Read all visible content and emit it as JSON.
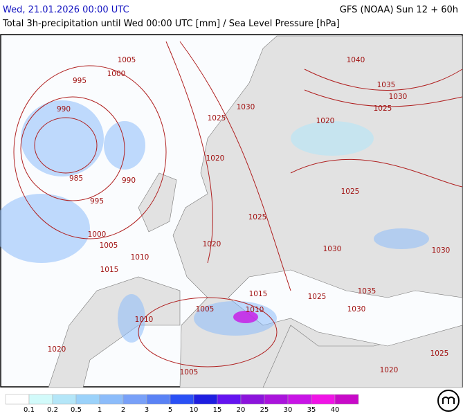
{
  "header": {
    "datetime": "Wed, 21.01.2026 00:00 UTC",
    "model": "GFS (NOAA) Sun 12 + 60h",
    "subtitle": "Total 3h-precipitation until Wed 00:00 UTC [mm] / Sea Level Pressure [hPa]"
  },
  "isobar_labels": [
    "1005",
    "1000",
    "995",
    "990",
    "985",
    "990",
    "995",
    "1000",
    "1005",
    "1010",
    "1015",
    "1010",
    "1005",
    "1005",
    "1020",
    "1030",
    "1025",
    "1020",
    "1025",
    "1020",
    "1015",
    "1010",
    "1025",
    "1030",
    "1035",
    "1030",
    "1025",
    "1020",
    "1025",
    "1030",
    "1035",
    "1040",
    "1030",
    "1025",
    "1020"
  ],
  "legend": {
    "labels": [
      "0.1",
      "0.2",
      "0.5",
      "1",
      "2",
      "3",
      "5",
      "10",
      "15",
      "20",
      "25",
      "30",
      "35",
      "40"
    ],
    "colors": [
      "#ffffff",
      "#d2fafa",
      "#b4e6f8",
      "#9bd2fa",
      "#8cbcfa",
      "#78a0f8",
      "#5a82f5",
      "#2a50f5",
      "#1e1ee0",
      "#6414f0",
      "#8c14dc",
      "#aa14dc",
      "#c814e6",
      "#f014e6",
      "#c80ac8"
    ]
  }
}
